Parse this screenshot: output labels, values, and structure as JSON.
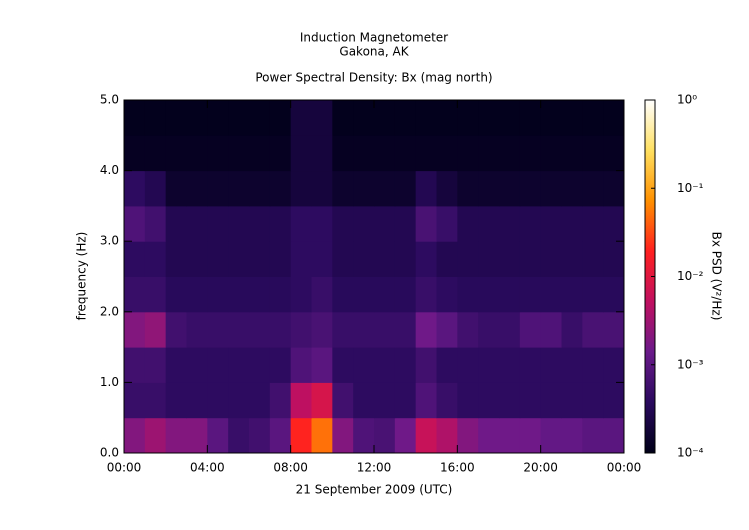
{
  "chart_data": {
    "type": "spectrogram",
    "title": "Induction Magnetometer",
    "subtitle": "Gakona, AK",
    "plot_title": "Power Spectral Density: Bx (mag north)",
    "xlabel": "21 September 2009 (UTC)",
    "ylabel": "frequency (Hz)",
    "colorbar_label": "Bx PSD (V²/Hz)",
    "time_bins": [
      0,
      1,
      2,
      3,
      4,
      5,
      6,
      7,
      8,
      9,
      10,
      11,
      12,
      13,
      14,
      15,
      16,
      17,
      18,
      19,
      20,
      21,
      22,
      23,
      24
    ],
    "frequency_bins": [
      0,
      0.5,
      1,
      1.5,
      2,
      2.5,
      3,
      3.5,
      4,
      4.5,
      5
    ],
    "values": [
      [
        0.002,
        0.003,
        0.002,
        0.002,
        0.001,
        0.0005,
        0.0006,
        0.001,
        0.02,
        0.05,
        0.002,
        0.0008,
        0.0007,
        0.0015,
        0.006,
        0.004,
        0.002,
        0.0015,
        0.0015,
        0.0015,
        0.0012,
        0.0012,
        0.001,
        0.001
      ],
      [
        0.0005,
        0.0005,
        0.0004,
        0.0004,
        0.0004,
        0.0004,
        0.0004,
        0.0006,
        0.005,
        0.008,
        0.0006,
        0.0004,
        0.0004,
        0.0004,
        0.0008,
        0.0005,
        0.0004,
        0.0004,
        0.0004,
        0.0004,
        0.0004,
        0.0004,
        0.0004,
        0.0004
      ],
      [
        0.0006,
        0.0006,
        0.0004,
        0.0004,
        0.0004,
        0.0004,
        0.0004,
        0.0004,
        0.0008,
        0.001,
        0.0004,
        0.0004,
        0.0004,
        0.0004,
        0.0006,
        0.0004,
        0.0004,
        0.0004,
        0.0004,
        0.0004,
        0.0004,
        0.0004,
        0.0004,
        0.0004
      ],
      [
        0.002,
        0.0025,
        0.0006,
        0.0005,
        0.0005,
        0.0005,
        0.0005,
        0.0005,
        0.0006,
        0.0007,
        0.0005,
        0.0005,
        0.0005,
        0.0005,
        0.0015,
        0.001,
        0.0006,
        0.0005,
        0.0005,
        0.0008,
        0.0008,
        0.0005,
        0.0007,
        0.0007
      ],
      [
        0.0005,
        0.0005,
        0.00035,
        0.00035,
        0.00035,
        0.00035,
        0.00035,
        0.00035,
        0.0004,
        0.0005,
        0.00035,
        0.00035,
        0.00035,
        0.00035,
        0.0005,
        0.0004,
        0.00035,
        0.00035,
        0.00035,
        0.00035,
        0.00035,
        0.00035,
        0.00035,
        0.00035
      ],
      [
        0.0004,
        0.0004,
        0.0003,
        0.0003,
        0.0003,
        0.0003,
        0.0003,
        0.0003,
        0.0004,
        0.0004,
        0.0003,
        0.0003,
        0.0003,
        0.0003,
        0.0004,
        0.0003,
        0.0003,
        0.0003,
        0.0003,
        0.0003,
        0.0003,
        0.0003,
        0.0003,
        0.0003
      ],
      [
        0.0008,
        0.0006,
        0.0003,
        0.0003,
        0.0003,
        0.0003,
        0.0003,
        0.0003,
        0.0004,
        0.0004,
        0.0003,
        0.0003,
        0.0003,
        0.0003,
        0.0007,
        0.0005,
        0.0003,
        0.0003,
        0.0003,
        0.0003,
        0.0003,
        0.0003,
        0.0003,
        0.0003
      ],
      [
        0.0004,
        0.0003,
        0.00015,
        0.00015,
        0.00015,
        0.00015,
        0.00015,
        0.00015,
        0.0002,
        0.0002,
        0.00015,
        0.00015,
        0.00015,
        0.00015,
        0.0003,
        0.0002,
        0.00015,
        0.00015,
        0.00015,
        0.00015,
        0.00015,
        0.00015,
        0.00015,
        0.00015
      ],
      [
        0.00012,
        0.00012,
        0.00012,
        0.00012,
        0.00012,
        0.00012,
        0.00012,
        0.00012,
        0.0002,
        0.0002,
        0.00012,
        0.00012,
        0.00012,
        0.00012,
        0.00012,
        0.00012,
        0.00012,
        0.00012,
        0.00012,
        0.00012,
        0.00012,
        0.00012,
        0.00012,
        0.00012
      ],
      [
        0.00011,
        0.00011,
        0.00011,
        0.00011,
        0.00011,
        0.00011,
        0.00011,
        0.00011,
        0.0002,
        0.0002,
        0.00011,
        0.00011,
        0.00011,
        0.00011,
        0.00011,
        0.00011,
        0.00011,
        0.00011,
        0.00011,
        0.00011,
        0.00011,
        0.00011,
        0.00011,
        0.00011
      ]
    ],
    "xlim": [
      0,
      24
    ],
    "xticks": [
      {
        "value": 0,
        "label": "00:00"
      },
      {
        "value": 4,
        "label": "04:00"
      },
      {
        "value": 8,
        "label": "08:00"
      },
      {
        "value": 12,
        "label": "12:00"
      },
      {
        "value": 16,
        "label": "16:00"
      },
      {
        "value": 20,
        "label": "20:00"
      },
      {
        "value": 24,
        "label": "00:00"
      }
    ],
    "ylim": [
      0,
      5
    ],
    "yticks": [
      {
        "value": 0,
        "label": "0.0"
      },
      {
        "value": 1,
        "label": "1.0"
      },
      {
        "value": 2,
        "label": "2.0"
      },
      {
        "value": 3,
        "label": "3.0"
      },
      {
        "value": 4,
        "label": "4.0"
      },
      {
        "value": 5,
        "label": "5.0"
      }
    ],
    "colorlim": [
      0.0001,
      1
    ],
    "colorticks": [
      {
        "value": 0.0001,
        "label": "10⁻⁴"
      },
      {
        "value": 0.001,
        "label": "10⁻³"
      },
      {
        "value": 0.01,
        "label": "10⁻²"
      },
      {
        "value": 0.1,
        "label": "10⁻¹"
      },
      {
        "value": 1,
        "label": "10⁰"
      }
    ],
    "color_scale": "log",
    "colormap": [
      "#000018",
      "#2a0a5e",
      "#6a1a8a",
      "#c01060",
      "#ff2020",
      "#ff9000",
      "#ffe060",
      "#ffffff"
    ]
  }
}
